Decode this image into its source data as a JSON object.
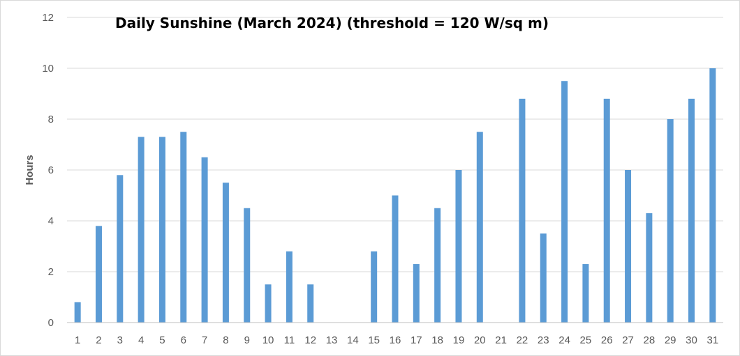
{
  "chart_data": {
    "type": "bar",
    "title": "Daily Sunshine (March 2024) (threshold = 120 W/sq m)",
    "xlabel": "",
    "ylabel": "Hours",
    "ylim": [
      0,
      12
    ],
    "yticks": [
      "0",
      "2",
      "4",
      "6",
      "8",
      "10",
      "12"
    ],
    "categories": [
      "1",
      "2",
      "3",
      "4",
      "5",
      "6",
      "7",
      "8",
      "9",
      "10",
      "11",
      "12",
      "13",
      "14",
      "15",
      "16",
      "17",
      "18",
      "19",
      "20",
      "21",
      "22",
      "23",
      "24",
      "25",
      "26",
      "27",
      "28",
      "29",
      "30",
      "31"
    ],
    "values": [
      0.8,
      3.8,
      5.8,
      7.3,
      7.3,
      7.5,
      6.5,
      5.5,
      4.5,
      1.5,
      2.8,
      1.5,
      0,
      0,
      2.8,
      5.0,
      2.3,
      4.5,
      6.0,
      7.5,
      0,
      8.8,
      3.5,
      9.5,
      2.3,
      8.8,
      6.0,
      4.3,
      8.0,
      8.8,
      10.0
    ],
    "grid": true,
    "legend": "none",
    "bar_color": "#5b9bd5",
    "grid_color": "#d9d9d9",
    "axis_color": "#bfbfbf"
  }
}
